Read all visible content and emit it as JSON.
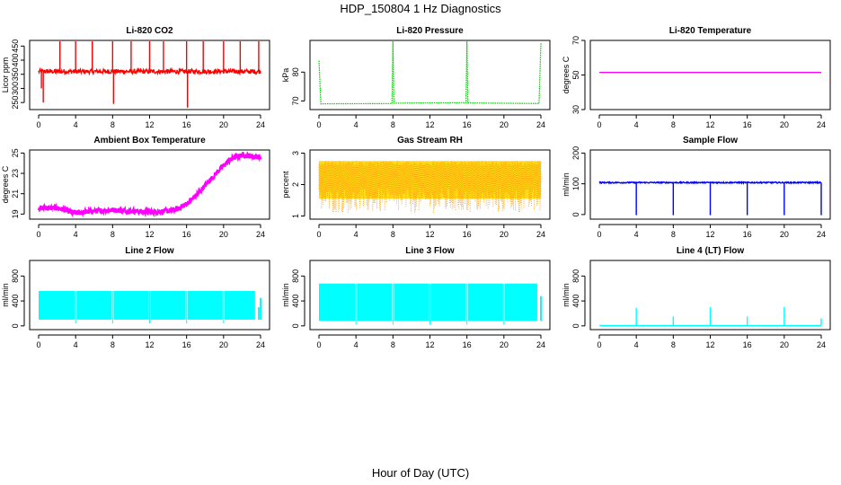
{
  "page": {
    "title": "HDP_150804  1 Hz Diagnostics",
    "xlabel": "Hour of Day (UTC)"
  },
  "chart_data": [
    {
      "type": "line",
      "title": "Li-820 CO2",
      "ylabel": "Licor ppm",
      "color": "#ff0000",
      "xlabel": "",
      "xlim": [
        0,
        24
      ],
      "ylim": [
        225,
        470
      ],
      "xticks": [
        0,
        4,
        8,
        12,
        16,
        20,
        24
      ],
      "yticks": [
        250,
        300,
        350,
        400,
        450
      ],
      "series": [
        {
          "kind": "noisy_line",
          "baseline": 360,
          "noise": 8,
          "spikes": [
            [
              0.3,
              300
            ],
            [
              0.5,
              250
            ],
            [
              2.3,
              470
            ],
            [
              4,
              470
            ],
            [
              5.8,
              470
            ],
            [
              8,
              470
            ],
            [
              8.1,
              245
            ],
            [
              10,
              470
            ],
            [
              12,
              470
            ],
            [
              13.5,
              470
            ],
            [
              16,
              470
            ],
            [
              16.1,
              232
            ],
            [
              17.8,
              470
            ],
            [
              20,
              470
            ],
            [
              21.8,
              470
            ],
            [
              23.8,
              470
            ]
          ]
        }
      ]
    },
    {
      "type": "line",
      "title": "Li-820 Pressure",
      "ylabel": "kPa",
      "color": "#00cc00",
      "xlabel": "",
      "xlim": [
        0,
        24
      ],
      "ylim": [
        67,
        91
      ],
      "xticks": [
        0,
        4,
        8,
        12,
        16,
        20,
        24
      ],
      "yticks": [
        70,
        80
      ],
      "series": [
        {
          "kind": "step_line",
          "points": [
            [
              0,
              84
            ],
            [
              0.2,
              69
            ],
            [
              7.9,
              69.1
            ],
            [
              8,
              91
            ],
            [
              8.1,
              69.2
            ],
            [
              11,
              69.3
            ],
            [
              15.9,
              69.4
            ],
            [
              16,
              91
            ],
            [
              16.1,
              69.3
            ],
            [
              23.8,
              69.1
            ],
            [
              24,
              90
            ]
          ]
        }
      ]
    },
    {
      "type": "line",
      "title": "Li-820 Temperature",
      "ylabel": "degrees C",
      "color": "#ff00ff",
      "xlabel": "",
      "xlim": [
        0,
        24
      ],
      "ylim": [
        30,
        70
      ],
      "xticks": [
        0,
        4,
        8,
        12,
        16,
        20,
        24
      ],
      "yticks": [
        30,
        50,
        70
      ],
      "series": [
        {
          "kind": "flat",
          "value": 51.5
        }
      ]
    },
    {
      "type": "line",
      "title": "Ambient Box Temperature",
      "ylabel": "degrees C",
      "color": "#ff00ff",
      "xlabel": "",
      "xlim": [
        0,
        24
      ],
      "ylim": [
        18.5,
        25.3
      ],
      "xticks": [
        0,
        4,
        8,
        12,
        16,
        20,
        24
      ],
      "yticks": [
        19,
        21,
        23,
        25
      ],
      "series": [
        {
          "kind": "noisy_curve",
          "noise": 0.25,
          "points": [
            [
              0,
              19.6
            ],
            [
              2,
              19.6
            ],
            [
              4,
              19.1
            ],
            [
              6,
              19.3
            ],
            [
              8,
              19.4
            ],
            [
              10,
              19.3
            ],
            [
              12,
              19.2
            ],
            [
              14,
              19.3
            ],
            [
              15,
              19.5
            ],
            [
              16,
              20.0
            ],
            [
              17,
              20.8
            ],
            [
              18,
              21.8
            ],
            [
              19,
              22.8
            ],
            [
              20,
              23.8
            ],
            [
              21,
              24.5
            ],
            [
              22,
              24.8
            ],
            [
              24,
              24.6
            ]
          ]
        }
      ]
    },
    {
      "type": "line",
      "title": "Gas Stream RH",
      "ylabel": "percent",
      "color": "#ff9900",
      "xlabel": "",
      "xlim": [
        0,
        24
      ],
      "ylim": [
        0.9,
        3.1
      ],
      "xticks": [
        0,
        4,
        8,
        12,
        16,
        20,
        24
      ],
      "yticks": [
        1.0,
        2.0,
        3.0
      ],
      "series": [
        {
          "kind": "band",
          "low": 1.1,
          "high": 2.75,
          "dots_color": "#ffd700"
        }
      ]
    },
    {
      "type": "line",
      "title": "Sample Flow",
      "ylabel": "ml/min",
      "color": "#0000ff",
      "xlabel": "",
      "xlim": [
        0,
        24
      ],
      "ylim": [
        -15,
        210
      ],
      "xticks": [
        0,
        4,
        8,
        12,
        16,
        20,
        24
      ],
      "yticks": [
        0,
        100,
        200
      ],
      "series": [
        {
          "kind": "noisy_line",
          "baseline": 104,
          "noise": 2,
          "spikes": [
            [
              4,
              -2
            ],
            [
              8,
              -2
            ],
            [
              12,
              -2
            ],
            [
              16,
              -2
            ],
            [
              20,
              -2
            ],
            [
              24,
              -2
            ]
          ]
        }
      ]
    },
    {
      "type": "area",
      "title": "Line 2 Flow",
      "ylabel": "ml/min",
      "color": "#00ffff",
      "xlabel": "",
      "xlim": [
        0,
        24
      ],
      "ylim": [
        -60,
        1050
      ],
      "xticks": [
        0,
        4,
        8,
        12,
        16,
        20,
        24
      ],
      "yticks": [
        0,
        400,
        800
      ],
      "series": [
        {
          "kind": "block",
          "low": 100,
          "high": 560,
          "gaps": [
            4,
            8,
            12,
            16,
            20
          ],
          "end": 23.5,
          "tail": [
            [
              23.8,
              300
            ],
            [
              24,
              450
            ]
          ]
        }
      ]
    },
    {
      "type": "area",
      "title": "Line 3 Flow",
      "ylabel": "ml/min",
      "color": "#00ffff",
      "xlabel": "",
      "xlim": [
        0,
        24
      ],
      "ylim": [
        -60,
        1050
      ],
      "xticks": [
        0,
        4,
        8,
        12,
        16,
        20,
        24
      ],
      "yticks": [
        0,
        400,
        800
      ],
      "series": [
        {
          "kind": "block",
          "low": 80,
          "high": 680,
          "gaps": [
            4,
            8,
            12,
            16,
            20
          ],
          "end": 23.7,
          "tail": [
            [
              24,
              480
            ]
          ]
        }
      ]
    },
    {
      "type": "line",
      "title": "Line 4 (LT) Flow",
      "ylabel": "ml/min",
      "color": "#00ffff",
      "xlabel": "",
      "xlim": [
        0,
        24
      ],
      "ylim": [
        -60,
        1050
      ],
      "xticks": [
        0,
        4,
        8,
        12,
        16,
        20,
        24
      ],
      "yticks": [
        0,
        400,
        800
      ],
      "series": [
        {
          "kind": "noisy_line",
          "baseline": 5,
          "noise": 1,
          "spikes": [
            [
              4,
              290
            ],
            [
              8,
              150
            ],
            [
              12,
              300
            ],
            [
              16,
              150
            ],
            [
              20,
              300
            ],
            [
              24,
              120
            ]
          ]
        }
      ]
    }
  ]
}
